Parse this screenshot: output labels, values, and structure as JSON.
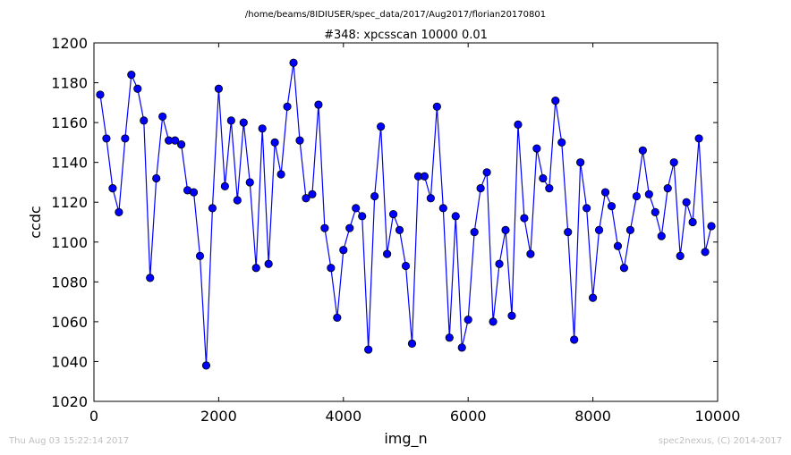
{
  "header": {
    "path": "/home/beams/8IDIUSER/spec_data/2017/Aug2017/florian20170801"
  },
  "footer": {
    "timestamp": "Thu Aug 03 15:22:14 2017",
    "credit": "spec2nexus, (C) 2014-2017"
  },
  "colors": {
    "series": "#0000ff",
    "axis": "#000000",
    "footer_text": "#c0c0c0"
  },
  "chart_data": {
    "type": "line",
    "title": "#348: xpcsscan 10000 0.01",
    "xlabel": "img_n",
    "ylabel": "ccdc",
    "xlim": [
      0,
      10000
    ],
    "ylim": [
      1020,
      1200
    ],
    "xticks": [
      0,
      2000,
      4000,
      6000,
      8000,
      10000
    ],
    "yticks": [
      1020,
      1040,
      1060,
      1080,
      1100,
      1120,
      1140,
      1160,
      1180,
      1200
    ],
    "grid": false,
    "marker": "circle",
    "series": [
      {
        "x": [
          100,
          200,
          300,
          400,
          500,
          600,
          700,
          800,
          900,
          1000,
          1100,
          1200,
          1300,
          1400,
          1500,
          1600,
          1700,
          1800,
          1900,
          2000,
          2100,
          2200,
          2300,
          2400,
          2500,
          2600,
          2700,
          2800,
          2900,
          3000,
          3100,
          3200,
          3300,
          3400,
          3500,
          3600,
          3700,
          3800,
          3900,
          4000,
          4100,
          4200,
          4300,
          4400,
          4500,
          4600,
          4700,
          4800,
          4900,
          5000,
          5100,
          5200,
          5300,
          5400,
          5500,
          5600,
          5700,
          5800,
          5900,
          6000,
          6100,
          6200,
          6300,
          6400,
          6500,
          6600,
          6700,
          6800,
          6900,
          7000,
          7100,
          7200,
          7300,
          7400,
          7500,
          7600,
          7700,
          7800,
          7900,
          8000,
          8100,
          8200,
          8300,
          8400,
          8500,
          8600,
          8700,
          8800,
          8900,
          9000,
          9100,
          9200,
          9300,
          9400,
          9500,
          9600,
          9700,
          9800,
          9900
        ],
        "y": [
          1174,
          1152,
          1127,
          1115,
          1152,
          1184,
          1177,
          1161,
          1082,
          1132,
          1163,
          1151,
          1151,
          1149,
          1126,
          1125,
          1093,
          1038,
          1117,
          1177,
          1128,
          1161,
          1121,
          1160,
          1130,
          1087,
          1157,
          1089,
          1150,
          1134,
          1168,
          1190,
          1151,
          1122,
          1124,
          1169,
          1107,
          1087,
          1062,
          1096,
          1107,
          1117,
          1113,
          1046,
          1123,
          1158,
          1094,
          1114,
          1106,
          1088,
          1049,
          1133,
          1133,
          1122,
          1168,
          1117,
          1052,
          1113,
          1047,
          1061,
          1105,
          1127,
          1135,
          1060,
          1089,
          1106,
          1063,
          1159,
          1112,
          1094,
          1147,
          1132,
          1127,
          1171,
          1150,
          1105,
          1051,
          1140,
          1117,
          1072,
          1106,
          1125,
          1118,
          1098,
          1087,
          1106,
          1123,
          1146,
          1124,
          1115,
          1103,
          1127,
          1140,
          1093,
          1120,
          1110,
          1152,
          1095,
          1108
        ]
      }
    ]
  }
}
